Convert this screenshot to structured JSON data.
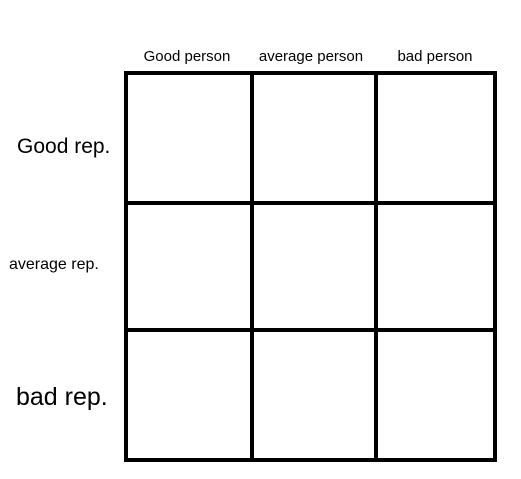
{
  "columns": [
    "Good person",
    "average person",
    "bad person"
  ],
  "rows": [
    "Good rep.",
    "average rep.",
    "bad rep."
  ],
  "cells": [
    [
      "",
      "",
      ""
    ],
    [
      "",
      "",
      ""
    ],
    [
      "",
      "",
      ""
    ]
  ]
}
